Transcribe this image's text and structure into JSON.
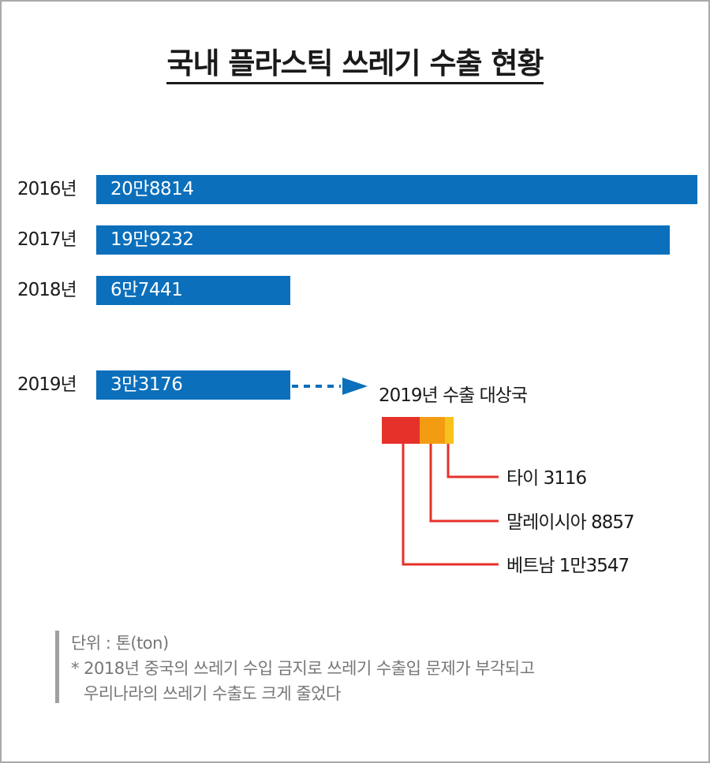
{
  "title": "국내 플라스틱 쓰레기 수출 현황",
  "chart_data": [
    {
      "type": "bar",
      "orientation": "horizontal",
      "title": "국내 플라스틱 쓰레기 수출 현황",
      "categories": [
        "2016년",
        "2017년",
        "2018년",
        "2019년"
      ],
      "values": [
        208814,
        199232,
        67441,
        33176
      ],
      "value_labels": [
        "20만8814",
        "19만9232",
        "6만7441",
        "3만3176"
      ],
      "bar_color": "#0b6fbb",
      "unit": "톤(ton)"
    },
    {
      "type": "bar",
      "orientation": "horizontal-stacked",
      "title": "2019년 수출 대상국",
      "categories": [
        "베트남",
        "말레이시아",
        "타이"
      ],
      "values": [
        13547,
        8857,
        3116
      ],
      "labels": [
        "베트남 1만3547",
        "말레이시아 8857",
        "타이 3116"
      ],
      "colors": [
        "#e6312a",
        "#f39c12",
        "#f7c21b"
      ]
    }
  ],
  "note": {
    "unit": "단위 : 톤(ton)",
    "line1": "* 2018년 중국의 쓰레기 수입 금지로 쓰레기 수출입 문제가 부각되고",
    "line2": "우리나라의 쓰레기 수출도 크게 줄었다"
  }
}
